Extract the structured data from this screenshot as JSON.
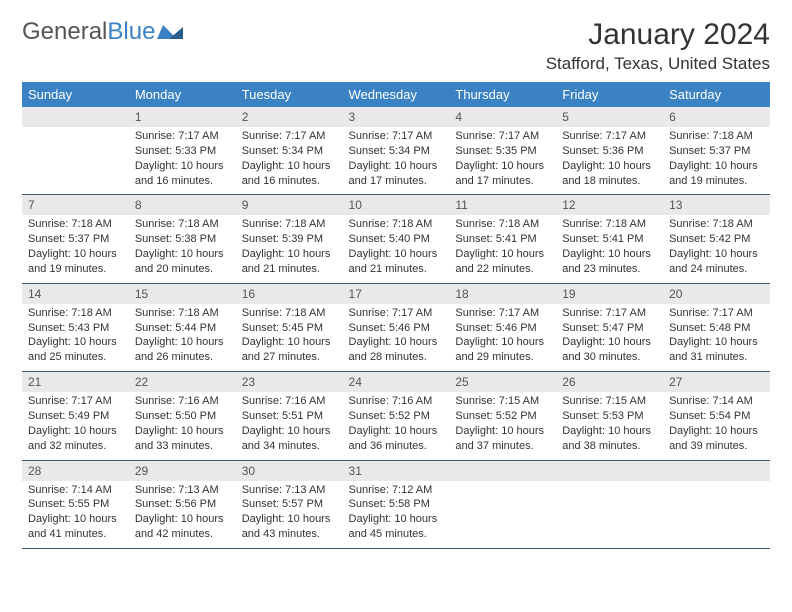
{
  "brand": {
    "name1": "General",
    "name2": "Blue"
  },
  "title": {
    "month": "January 2024",
    "location": "Stafford, Texas, United States"
  },
  "colors": {
    "header_bg": "#3b82c4",
    "header_text": "#ffffff",
    "daynum_bg": "#e9e9e9",
    "border": "#3b5f7a",
    "text": "#333333"
  },
  "day_labels": [
    "Sunday",
    "Monday",
    "Tuesday",
    "Wednesday",
    "Thursday",
    "Friday",
    "Saturday"
  ],
  "first_weekday_index": 1,
  "days": [
    {
      "n": "1",
      "sunrise": "7:17 AM",
      "sunset": "5:33 PM",
      "daylight": "10 hours and 16 minutes."
    },
    {
      "n": "2",
      "sunrise": "7:17 AM",
      "sunset": "5:34 PM",
      "daylight": "10 hours and 16 minutes."
    },
    {
      "n": "3",
      "sunrise": "7:17 AM",
      "sunset": "5:34 PM",
      "daylight": "10 hours and 17 minutes."
    },
    {
      "n": "4",
      "sunrise": "7:17 AM",
      "sunset": "5:35 PM",
      "daylight": "10 hours and 17 minutes."
    },
    {
      "n": "5",
      "sunrise": "7:17 AM",
      "sunset": "5:36 PM",
      "daylight": "10 hours and 18 minutes."
    },
    {
      "n": "6",
      "sunrise": "7:18 AM",
      "sunset": "5:37 PM",
      "daylight": "10 hours and 19 minutes."
    },
    {
      "n": "7",
      "sunrise": "7:18 AM",
      "sunset": "5:37 PM",
      "daylight": "10 hours and 19 minutes."
    },
    {
      "n": "8",
      "sunrise": "7:18 AM",
      "sunset": "5:38 PM",
      "daylight": "10 hours and 20 minutes."
    },
    {
      "n": "9",
      "sunrise": "7:18 AM",
      "sunset": "5:39 PM",
      "daylight": "10 hours and 21 minutes."
    },
    {
      "n": "10",
      "sunrise": "7:18 AM",
      "sunset": "5:40 PM",
      "daylight": "10 hours and 21 minutes."
    },
    {
      "n": "11",
      "sunrise": "7:18 AM",
      "sunset": "5:41 PM",
      "daylight": "10 hours and 22 minutes."
    },
    {
      "n": "12",
      "sunrise": "7:18 AM",
      "sunset": "5:41 PM",
      "daylight": "10 hours and 23 minutes."
    },
    {
      "n": "13",
      "sunrise": "7:18 AM",
      "sunset": "5:42 PM",
      "daylight": "10 hours and 24 minutes."
    },
    {
      "n": "14",
      "sunrise": "7:18 AM",
      "sunset": "5:43 PM",
      "daylight": "10 hours and 25 minutes."
    },
    {
      "n": "15",
      "sunrise": "7:18 AM",
      "sunset": "5:44 PM",
      "daylight": "10 hours and 26 minutes."
    },
    {
      "n": "16",
      "sunrise": "7:18 AM",
      "sunset": "5:45 PM",
      "daylight": "10 hours and 27 minutes."
    },
    {
      "n": "17",
      "sunrise": "7:17 AM",
      "sunset": "5:46 PM",
      "daylight": "10 hours and 28 minutes."
    },
    {
      "n": "18",
      "sunrise": "7:17 AM",
      "sunset": "5:46 PM",
      "daylight": "10 hours and 29 minutes."
    },
    {
      "n": "19",
      "sunrise": "7:17 AM",
      "sunset": "5:47 PM",
      "daylight": "10 hours and 30 minutes."
    },
    {
      "n": "20",
      "sunrise": "7:17 AM",
      "sunset": "5:48 PM",
      "daylight": "10 hours and 31 minutes."
    },
    {
      "n": "21",
      "sunrise": "7:17 AM",
      "sunset": "5:49 PM",
      "daylight": "10 hours and 32 minutes."
    },
    {
      "n": "22",
      "sunrise": "7:16 AM",
      "sunset": "5:50 PM",
      "daylight": "10 hours and 33 minutes."
    },
    {
      "n": "23",
      "sunrise": "7:16 AM",
      "sunset": "5:51 PM",
      "daylight": "10 hours and 34 minutes."
    },
    {
      "n": "24",
      "sunrise": "7:16 AM",
      "sunset": "5:52 PM",
      "daylight": "10 hours and 36 minutes."
    },
    {
      "n": "25",
      "sunrise": "7:15 AM",
      "sunset": "5:52 PM",
      "daylight": "10 hours and 37 minutes."
    },
    {
      "n": "26",
      "sunrise": "7:15 AM",
      "sunset": "5:53 PM",
      "daylight": "10 hours and 38 minutes."
    },
    {
      "n": "27",
      "sunrise": "7:14 AM",
      "sunset": "5:54 PM",
      "daylight": "10 hours and 39 minutes."
    },
    {
      "n": "28",
      "sunrise": "7:14 AM",
      "sunset": "5:55 PM",
      "daylight": "10 hours and 41 minutes."
    },
    {
      "n": "29",
      "sunrise": "7:13 AM",
      "sunset": "5:56 PM",
      "daylight": "10 hours and 42 minutes."
    },
    {
      "n": "30",
      "sunrise": "7:13 AM",
      "sunset": "5:57 PM",
      "daylight": "10 hours and 43 minutes."
    },
    {
      "n": "31",
      "sunrise": "7:12 AM",
      "sunset": "5:58 PM",
      "daylight": "10 hours and 45 minutes."
    }
  ],
  "labels": {
    "sunrise": "Sunrise:",
    "sunset": "Sunset:",
    "daylight": "Daylight:"
  }
}
